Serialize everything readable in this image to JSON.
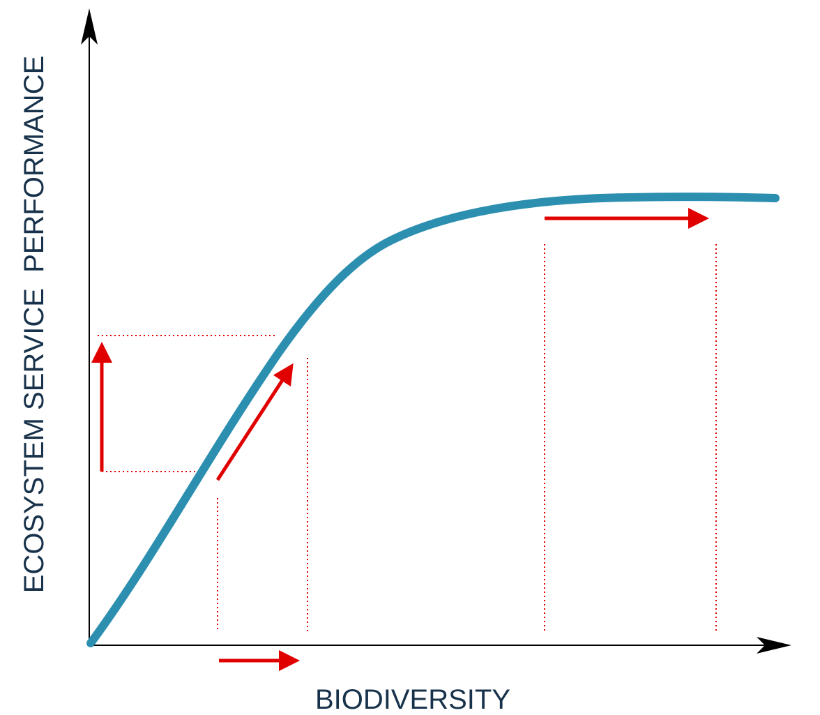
{
  "diagram": {
    "x_axis_label": "BIODIVERSITY",
    "y_axis_label": "ECOSYSTEM SERVICE  PERFORMANCE"
  },
  "colors": {
    "curve": "#2c8fb0",
    "arrows": "#e00000",
    "guides": "#e00000",
    "axes": "#000000",
    "label_text": "#17324a"
  }
}
